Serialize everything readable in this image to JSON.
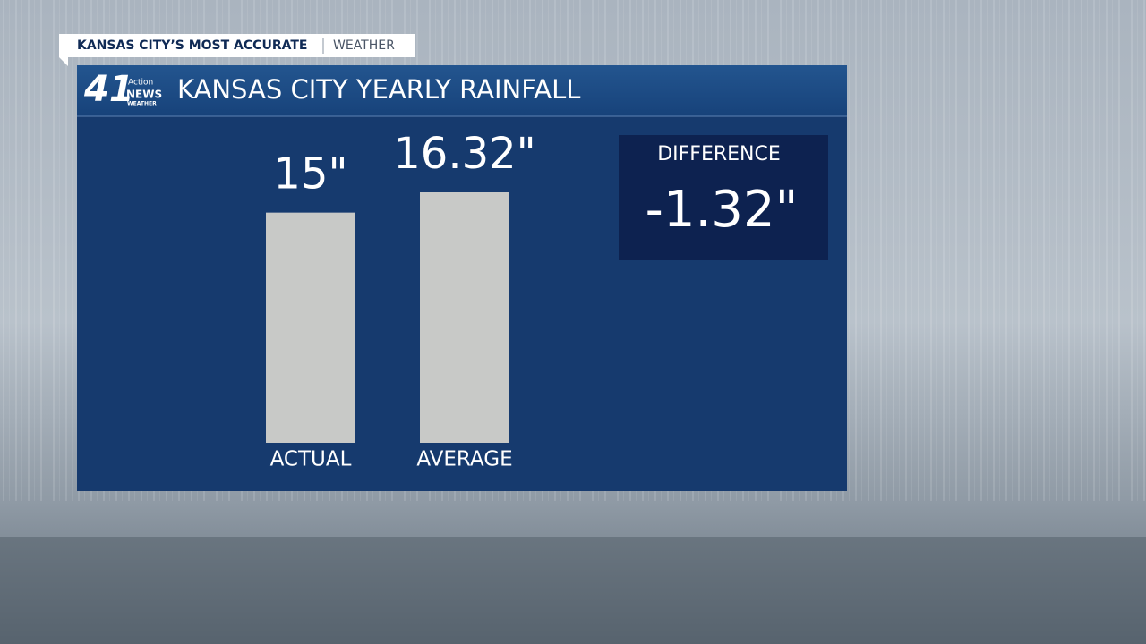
{
  "header": {
    "tagline": "KANSAS CITY’S MOST ACCURATE",
    "section": "WEATHER"
  },
  "logo": {
    "number": "41",
    "line1": "Action",
    "line2": "NEWS",
    "line3": "WEATHER"
  },
  "chart_data": {
    "type": "bar",
    "title": "KANSAS CITY YEARLY RAINFALL",
    "categories": [
      "ACTUAL",
      "AVERAGE"
    ],
    "values": [
      15,
      16.32
    ],
    "value_labels": [
      "15\"",
      "16.32\""
    ],
    "color": "#c8c9c7",
    "annotation": {
      "label": "DIFFERENCE",
      "value": "-1.32\""
    }
  }
}
